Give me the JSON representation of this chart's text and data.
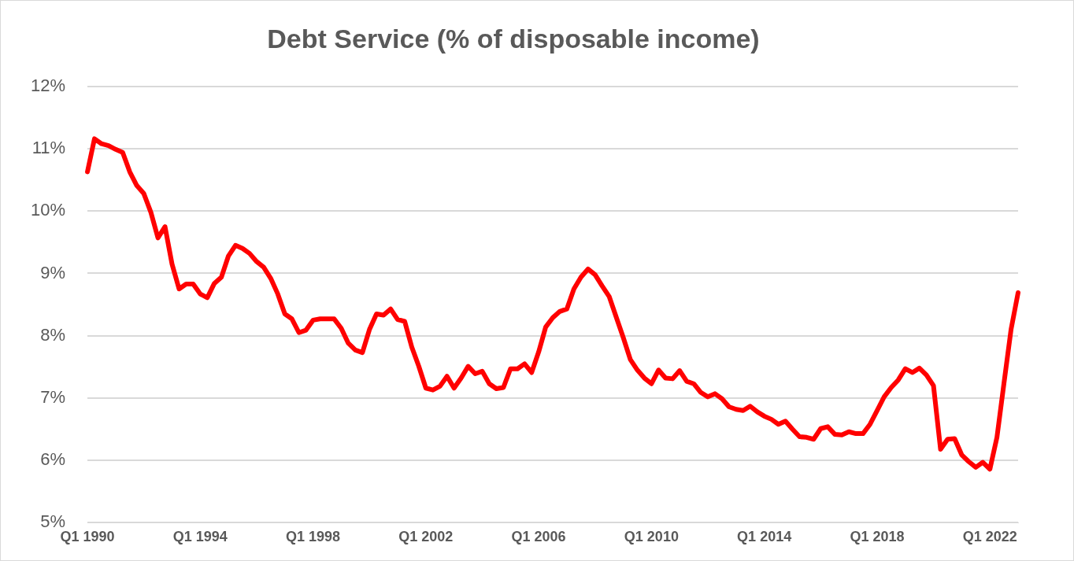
{
  "chart_data": {
    "type": "line",
    "title": "Debt Service (% of disposable income)",
    "categories": [
      "Q1 1990",
      null,
      null,
      null,
      null,
      null,
      null,
      null,
      null,
      null,
      null,
      null,
      null,
      null,
      null,
      null,
      "Q1 1994",
      null,
      null,
      null,
      null,
      null,
      null,
      null,
      null,
      null,
      null,
      null,
      null,
      null,
      null,
      null,
      "Q1 1998",
      null,
      null,
      null,
      null,
      null,
      null,
      null,
      null,
      null,
      null,
      null,
      null,
      null,
      null,
      null,
      "Q1 2002",
      null,
      null,
      null,
      null,
      null,
      null,
      null,
      null,
      null,
      null,
      null,
      null,
      null,
      null,
      null,
      "Q1 2006",
      null,
      null,
      null,
      null,
      null,
      null,
      null,
      null,
      null,
      null,
      null,
      null,
      null,
      null,
      null,
      "Q1 2010",
      null,
      null,
      null,
      null,
      null,
      null,
      null,
      null,
      null,
      null,
      null,
      null,
      null,
      null,
      null,
      "Q1 2014",
      null,
      null,
      null,
      null,
      null,
      null,
      null,
      null,
      null,
      null,
      null,
      null,
      null,
      null,
      null,
      "Q1 2018",
      null,
      null,
      null,
      null,
      null,
      null,
      null,
      null,
      null,
      null,
      null,
      null,
      null,
      null,
      null,
      "Q1 2022",
      null,
      null,
      null,
      null
    ],
    "series": [
      {
        "color": "#ff0000",
        "values": [
          10.63,
          11.16,
          11.08,
          11.05,
          10.99,
          10.94,
          10.63,
          10.41,
          10.28,
          9.98,
          9.57,
          9.75,
          9.15,
          8.75,
          8.83,
          8.83,
          8.67,
          8.61,
          8.84,
          8.94,
          9.28,
          9.45,
          9.4,
          9.32,
          9.19,
          9.1,
          8.92,
          8.67,
          8.35,
          8.27,
          8.05,
          8.09,
          8.25,
          8.27,
          8.27,
          8.27,
          8.12,
          7.88,
          7.77,
          7.73,
          8.1,
          8.35,
          8.33,
          8.43,
          8.26,
          8.23,
          7.82,
          7.51,
          7.16,
          7.13,
          7.19,
          7.35,
          7.16,
          7.32,
          7.51,
          7.39,
          7.43,
          7.23,
          7.15,
          7.17,
          7.47,
          7.47,
          7.55,
          7.41,
          7.74,
          8.14,
          8.29,
          8.39,
          8.43,
          8.75,
          8.94,
          9.07,
          8.98,
          8.8,
          8.63,
          8.3,
          7.97,
          7.62,
          7.45,
          7.32,
          7.23,
          7.45,
          7.32,
          7.31,
          7.44,
          7.27,
          7.23,
          7.09,
          7.02,
          7.07,
          6.99,
          6.86,
          6.82,
          6.8,
          6.87,
          6.78,
          6.71,
          6.66,
          6.58,
          6.63,
          6.5,
          6.38,
          6.37,
          6.34,
          6.51,
          6.54,
          6.42,
          6.41,
          6.46,
          6.43,
          6.43,
          6.58,
          6.8,
          7.02,
          7.17,
          7.29,
          7.47,
          7.41,
          7.48,
          7.37,
          7.2,
          6.18,
          6.34,
          6.35,
          6.09,
          5.98,
          5.89,
          5.97,
          5.86,
          6.37,
          7.24,
          8.1,
          8.69
        ]
      }
    ],
    "ylim": [
      5,
      12
    ],
    "yticks": [
      {
        "value": 5,
        "label": "5%"
      },
      {
        "value": 6,
        "label": "6%"
      },
      {
        "value": 7,
        "label": "7%"
      },
      {
        "value": 8,
        "label": "8%"
      },
      {
        "value": 9,
        "label": "9%"
      },
      {
        "value": 10,
        "label": "10%"
      },
      {
        "value": 11,
        "label": "11%"
      },
      {
        "value": 12,
        "label": "12%"
      }
    ],
    "grid": "y",
    "legend": false,
    "marker": "none",
    "line_style": "solid"
  }
}
